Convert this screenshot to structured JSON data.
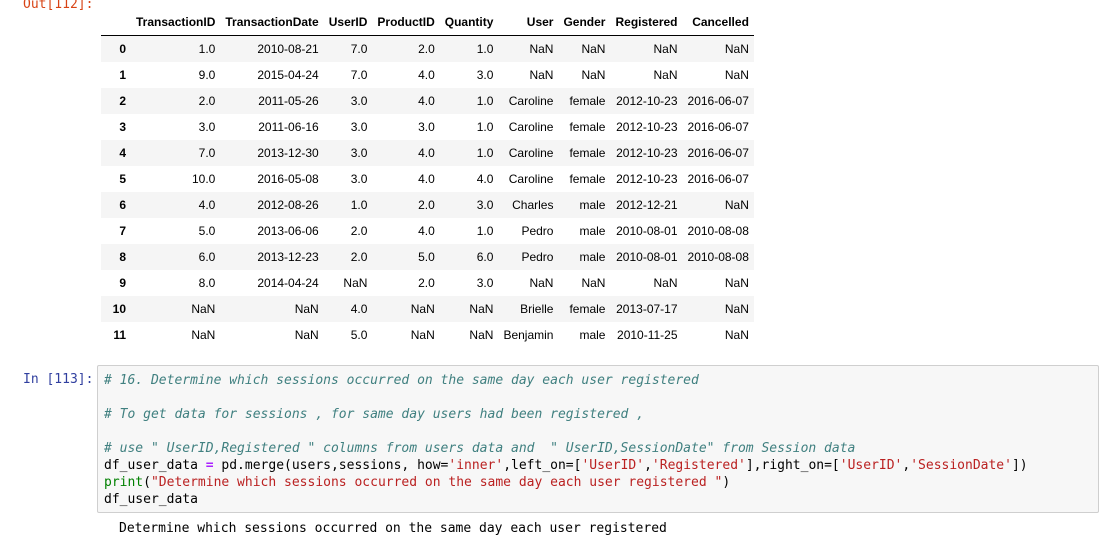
{
  "out_prompt": "Out[112]:",
  "in_prompt": "In [113]:",
  "dataframe": {
    "columns": [
      "TransactionID",
      "TransactionDate",
      "UserID",
      "ProductID",
      "Quantity",
      "User",
      "Gender",
      "Registered",
      "Cancelled"
    ],
    "rows": [
      {
        "index": "0",
        "cells": [
          "1.0",
          "2010-08-21",
          "7.0",
          "2.0",
          "1.0",
          "NaN",
          "NaN",
          "NaN",
          "NaN"
        ]
      },
      {
        "index": "1",
        "cells": [
          "9.0",
          "2015-04-24",
          "7.0",
          "4.0",
          "3.0",
          "NaN",
          "NaN",
          "NaN",
          "NaN"
        ]
      },
      {
        "index": "2",
        "cells": [
          "2.0",
          "2011-05-26",
          "3.0",
          "4.0",
          "1.0",
          "Caroline",
          "female",
          "2012-10-23",
          "2016-06-07"
        ]
      },
      {
        "index": "3",
        "cells": [
          "3.0",
          "2011-06-16",
          "3.0",
          "3.0",
          "1.0",
          "Caroline",
          "female",
          "2012-10-23",
          "2016-06-07"
        ]
      },
      {
        "index": "4",
        "cells": [
          "7.0",
          "2013-12-30",
          "3.0",
          "4.0",
          "1.0",
          "Caroline",
          "female",
          "2012-10-23",
          "2016-06-07"
        ]
      },
      {
        "index": "5",
        "cells": [
          "10.0",
          "2016-05-08",
          "3.0",
          "4.0",
          "4.0",
          "Caroline",
          "female",
          "2012-10-23",
          "2016-06-07"
        ]
      },
      {
        "index": "6",
        "cells": [
          "4.0",
          "2012-08-26",
          "1.0",
          "2.0",
          "3.0",
          "Charles",
          "male",
          "2012-12-21",
          "NaN"
        ]
      },
      {
        "index": "7",
        "cells": [
          "5.0",
          "2013-06-06",
          "2.0",
          "4.0",
          "1.0",
          "Pedro",
          "male",
          "2010-08-01",
          "2010-08-08"
        ]
      },
      {
        "index": "8",
        "cells": [
          "6.0",
          "2013-12-23",
          "2.0",
          "5.0",
          "6.0",
          "Pedro",
          "male",
          "2010-08-01",
          "2010-08-08"
        ]
      },
      {
        "index": "9",
        "cells": [
          "8.0",
          "2014-04-24",
          "NaN",
          "2.0",
          "3.0",
          "NaN",
          "NaN",
          "NaN",
          "NaN"
        ]
      },
      {
        "index": "10",
        "cells": [
          "NaN",
          "NaN",
          "4.0",
          "NaN",
          "NaN",
          "Brielle",
          "female",
          "2013-07-17",
          "NaN"
        ]
      },
      {
        "index": "11",
        "cells": [
          "NaN",
          "NaN",
          "5.0",
          "NaN",
          "NaN",
          "Benjamin",
          "male",
          "2010-11-25",
          "NaN"
        ]
      }
    ]
  },
  "code": {
    "comment1": "# 16. Determine which sessions occurred on the same day each user registered",
    "comment2": "# To get data for sessions , for same day users had been registered ,",
    "comment3": "# use \" UserID,Registered \" columns from users data and  \" UserID,SessionDate\" from Session data",
    "l4_var": "df_user_data",
    "l4_eq": " = ",
    "l4_a": "pd.merge(users,sessions, how=",
    "l4_s1": "'inner'",
    "l4_b": ",left_on=[",
    "l4_s2": "'UserID'",
    "l4_c": ",",
    "l4_s3": "'Registered'",
    "l4_d": "],right_on=[",
    "l4_s4": "'UserID'",
    "l4_e": ",",
    "l4_s5": "'SessionDate'",
    "l4_f": "])",
    "l5_fn": "print",
    "l5_open": "(",
    "l5_str": "\"Determine which sessions occurred on the same day each user registered \"",
    "l5_close": ")",
    "l6": "df_user_data"
  },
  "stdout": "Determine which sessions occurred on the same day each user registered"
}
